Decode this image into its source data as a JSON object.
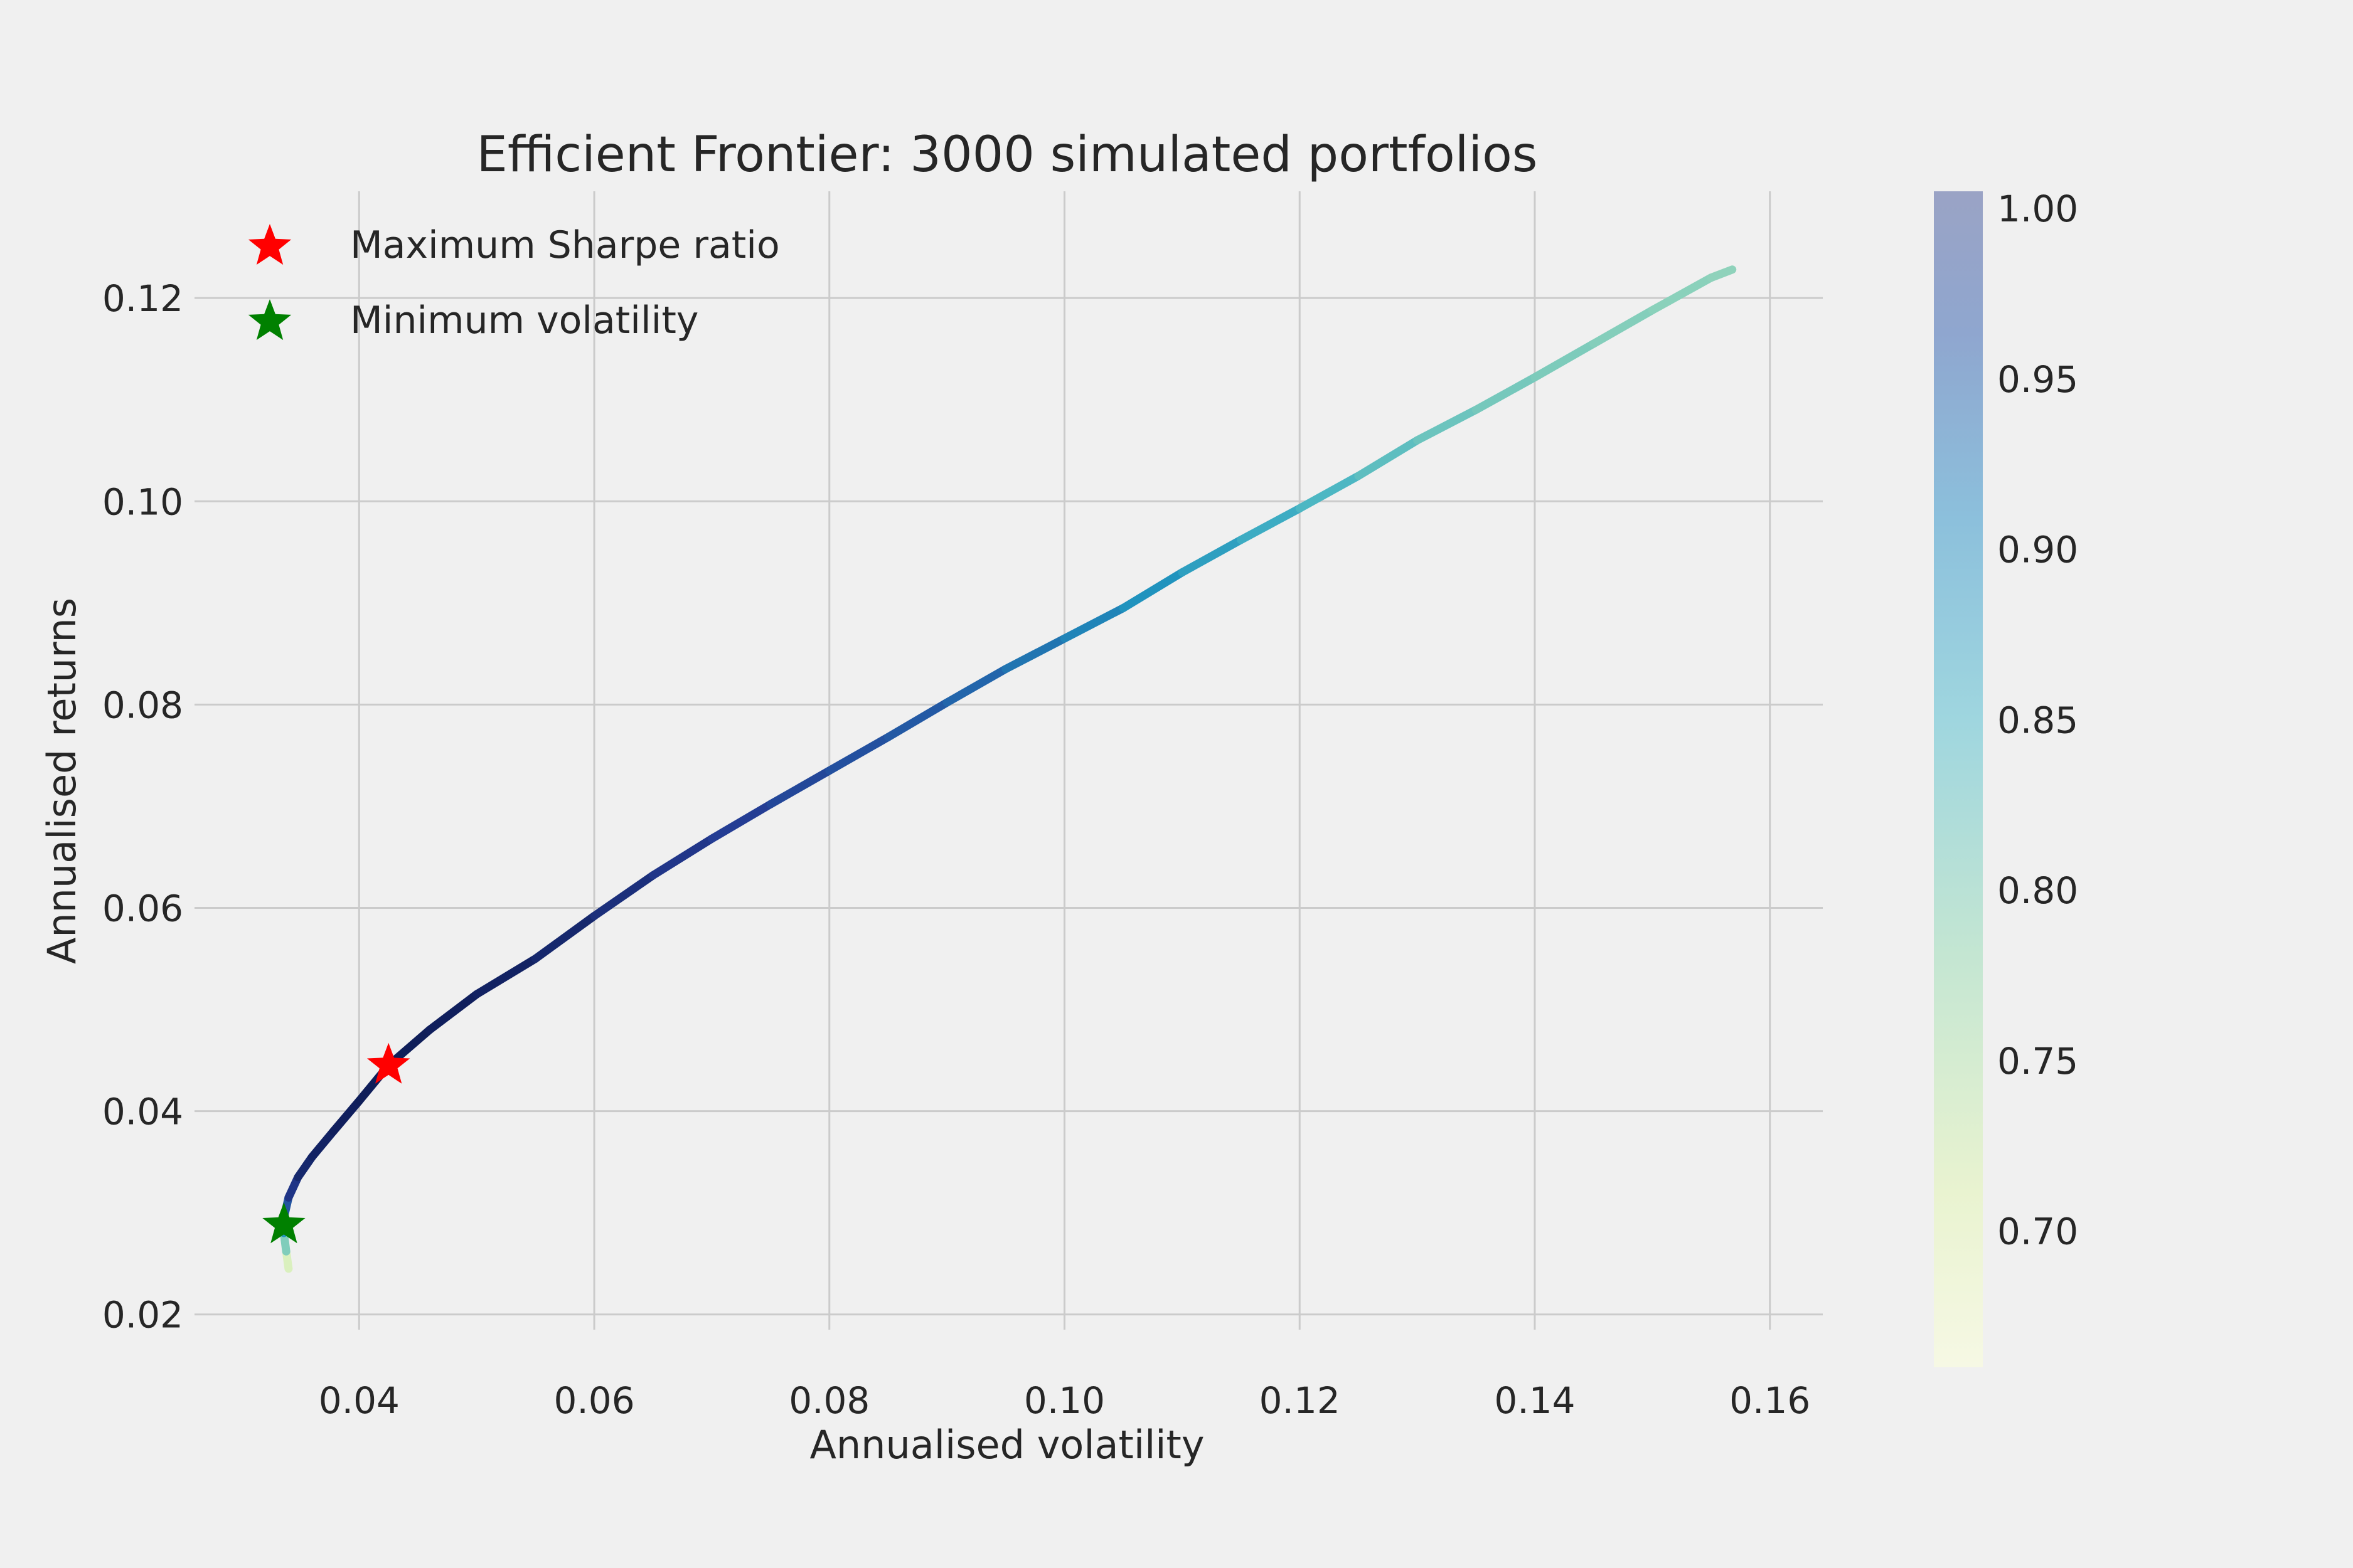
{
  "chart_data": {
    "type": "scatter",
    "title": "Efficient Frontier: 3000 simulated portfolios",
    "xlabel": "Annualised volatility",
    "ylabel": "Annualised returns",
    "xlim": [
      0.026,
      0.1645
    ],
    "ylim": [
      0.0185,
      0.1305
    ],
    "xticks": [
      0.04,
      0.06,
      0.08,
      0.1,
      0.12,
      0.14,
      0.16
    ],
    "xtick_labels": [
      "0.04",
      "0.06",
      "0.08",
      "0.10",
      "0.12",
      "0.14",
      "0.16"
    ],
    "yticks": [
      0.02,
      0.04,
      0.06,
      0.08,
      0.1,
      0.12
    ],
    "ytick_labels": [
      "0.02",
      "0.04",
      "0.06",
      "0.08",
      "0.10",
      "0.12"
    ],
    "grid": true,
    "legend_position": "top-left",
    "frontier": {
      "color_by": "Sharpe ratio",
      "colormap": "YlGnBu",
      "points": [
        [
          0.034,
          0.0245
        ],
        [
          0.0338,
          0.0262
        ],
        [
          0.0336,
          0.028
        ],
        [
          0.0336,
          0.0295
        ],
        [
          0.034,
          0.0315
        ],
        [
          0.0348,
          0.0335
        ],
        [
          0.036,
          0.0355
        ],
        [
          0.0378,
          0.038
        ],
        [
          0.04,
          0.041
        ],
        [
          0.0425,
          0.0445
        ],
        [
          0.046,
          0.048
        ],
        [
          0.05,
          0.0515
        ],
        [
          0.055,
          0.055
        ],
        [
          0.06,
          0.0592
        ],
        [
          0.065,
          0.0632
        ],
        [
          0.07,
          0.0668
        ],
        [
          0.075,
          0.0702
        ],
        [
          0.08,
          0.0735
        ],
        [
          0.085,
          0.0768
        ],
        [
          0.09,
          0.0802
        ],
        [
          0.095,
          0.0835
        ],
        [
          0.1,
          0.0865
        ],
        [
          0.105,
          0.0895
        ],
        [
          0.11,
          0.093
        ],
        [
          0.115,
          0.0962
        ],
        [
          0.12,
          0.0993
        ],
        [
          0.125,
          0.1025
        ],
        [
          0.13,
          0.106
        ],
        [
          0.135,
          0.109
        ],
        [
          0.14,
          0.1122
        ],
        [
          0.145,
          0.1155
        ],
        [
          0.15,
          0.1188
        ],
        [
          0.155,
          0.122
        ],
        [
          0.1568,
          0.1228
        ]
      ],
      "sharpe": [
        0.67,
        0.75,
        0.83,
        0.91,
        0.96,
        0.985,
        0.995,
        1.0,
        1.003,
        1.005,
        1.003,
        1.0,
        0.995,
        0.985,
        0.975,
        0.965,
        0.955,
        0.945,
        0.935,
        0.925,
        0.91,
        0.895,
        0.88,
        0.865,
        0.85,
        0.835,
        0.82,
        0.81,
        0.8,
        0.795,
        0.79,
        0.785,
        0.78,
        0.778
      ]
    },
    "markers": [
      {
        "name": "Maximum Sharpe ratio",
        "x": 0.0425,
        "y": 0.0445,
        "color": "#ff0000",
        "shape": "star"
      },
      {
        "name": "Minimum volatility",
        "x": 0.0336,
        "y": 0.0288,
        "color": "#008000",
        "shape": "star"
      }
    ],
    "colorbar": {
      "range": [
        0.66,
        1.005
      ],
      "ticks": [
        0.7,
        0.75,
        0.8,
        0.85,
        0.9,
        0.95,
        1.0
      ],
      "tick_labels": [
        "0.70",
        "0.75",
        "0.80",
        "0.85",
        "0.90",
        "0.95",
        "1.00"
      ]
    }
  }
}
